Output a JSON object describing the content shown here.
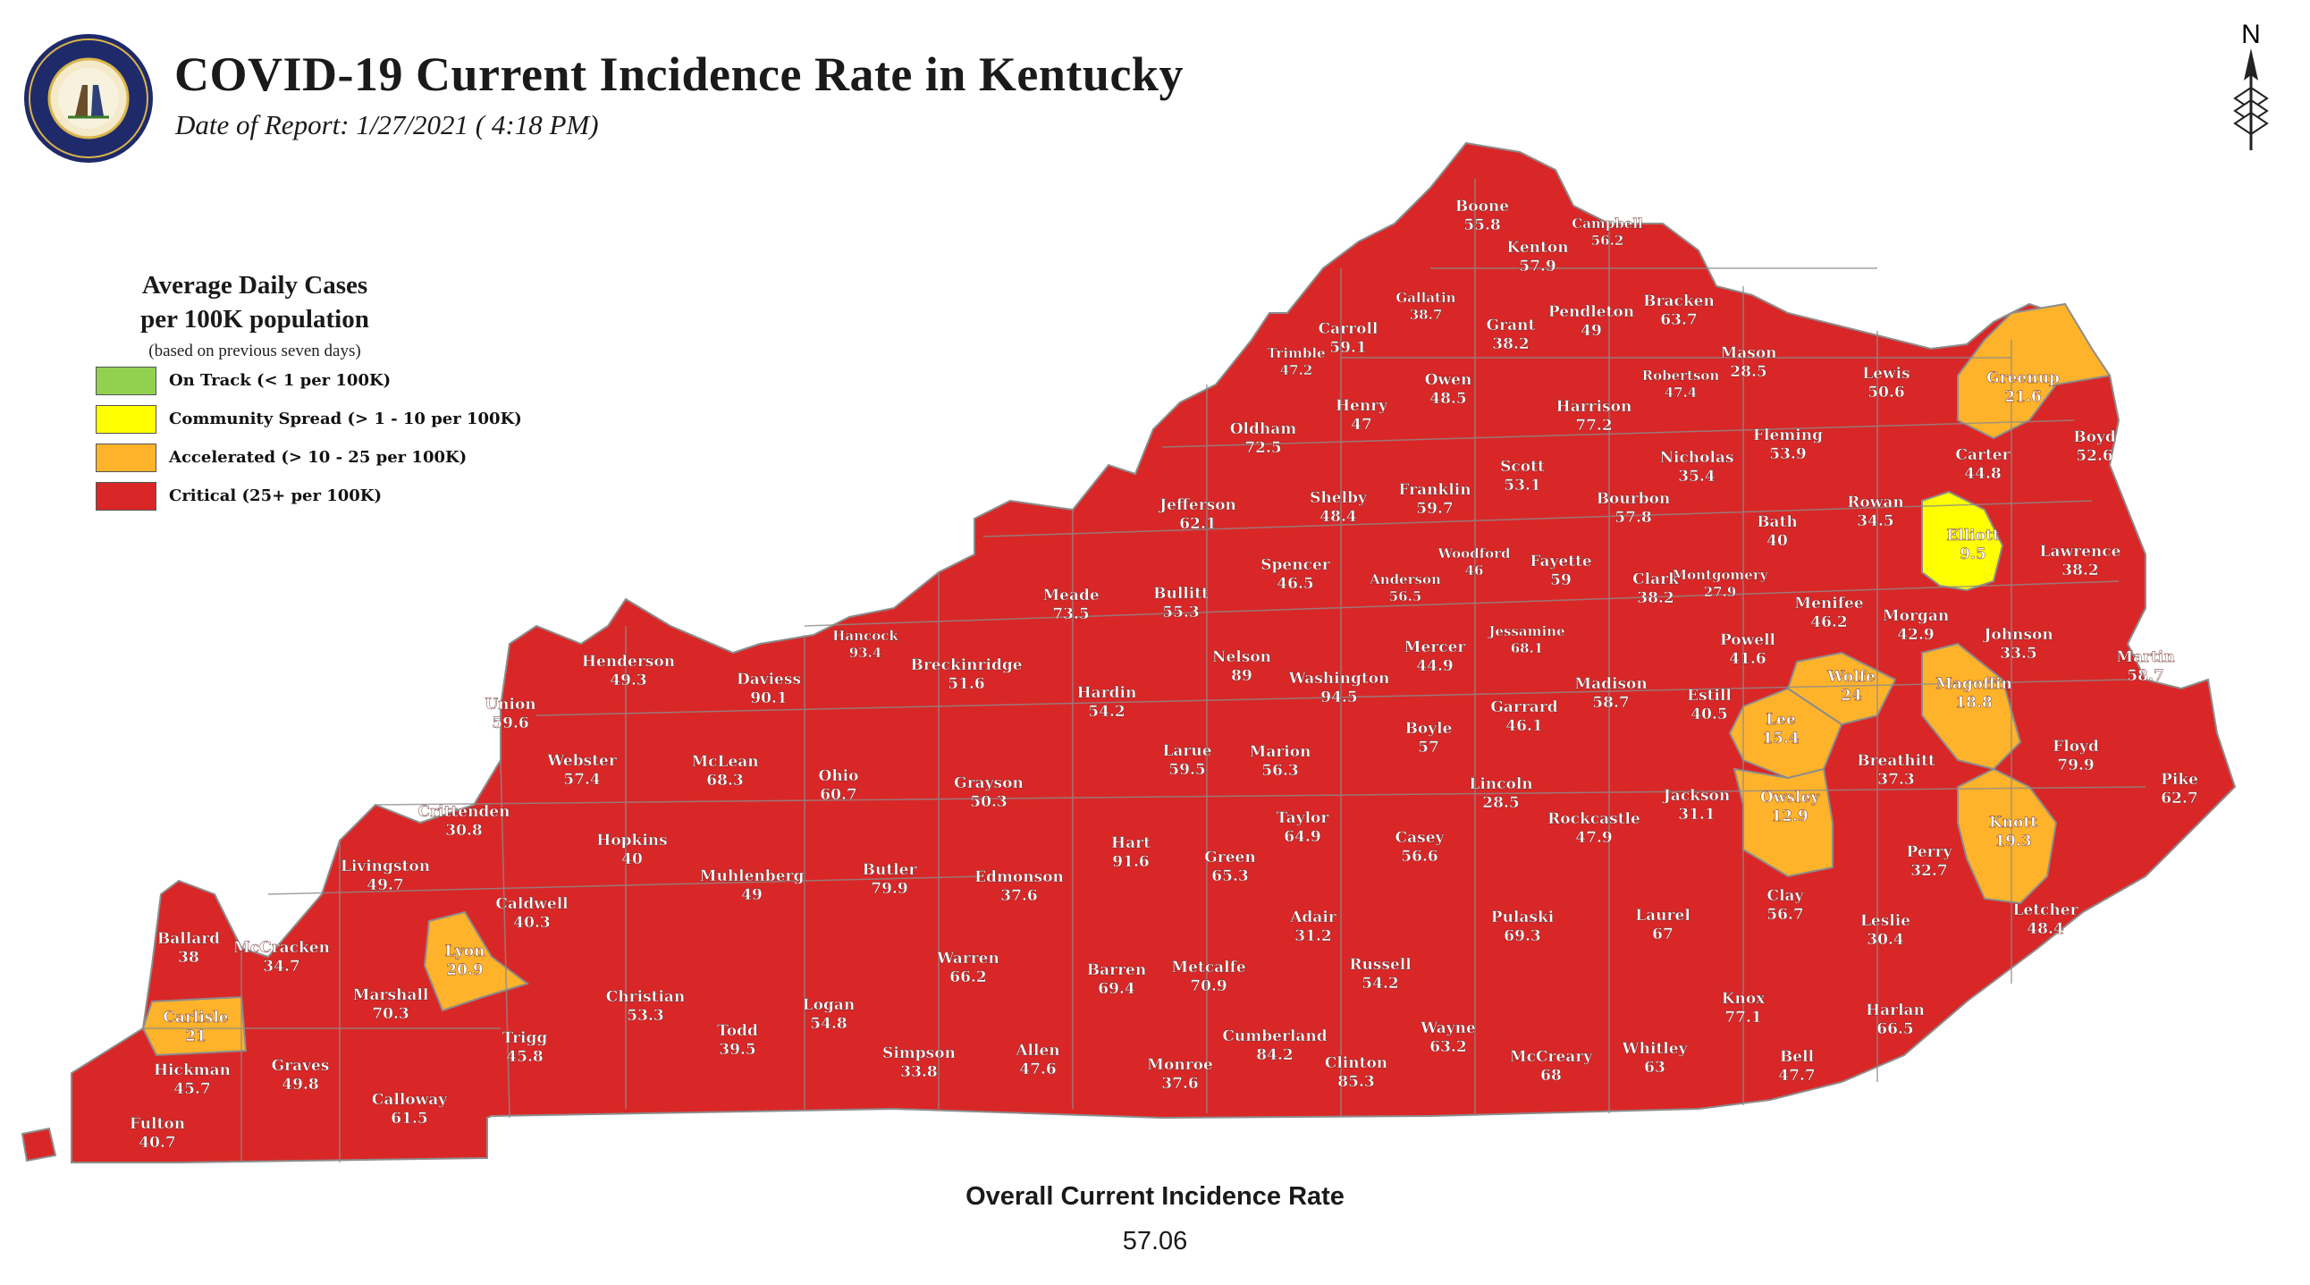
{
  "header": {
    "title": "COVID-19 Current Incidence Rate in Kentucky",
    "subtitle": "Date of Report: 1/27/2021 ( 4:18 PM)",
    "seal_text": "COMMONWEALTH OF KENTUCKY",
    "north_label": "N"
  },
  "legend": {
    "title_line1": "Average Daily Cases",
    "title_line2": "per 100K population",
    "note": "(based on previous seven days)",
    "items": [
      {
        "label": "On Track (< 1 per 100K)",
        "color": "#92d050"
      },
      {
        "label": "Community Spread (> 1 - 10 per 100K)",
        "color": "#ffff00"
      },
      {
        "label": "Accelerated (> 10 - 25 per 100K)",
        "color": "#ffb32b"
      },
      {
        "label": "Critical (25+ per 100K)",
        "color": "#d92727"
      }
    ]
  },
  "footer": {
    "label": "Overall Current Incidence Rate",
    "value": "57.06"
  },
  "counties": [
    {
      "name": "Boone",
      "value": "55.8"
    },
    {
      "name": "Kenton",
      "value": "57.9"
    },
    {
      "name": "Campbell",
      "value": "56.2"
    },
    {
      "name": "Gallatin",
      "value": "38.7"
    },
    {
      "name": "Carroll",
      "value": "59.1"
    },
    {
      "name": "Grant",
      "value": "38.2"
    },
    {
      "name": "Pendleton",
      "value": "49"
    },
    {
      "name": "Bracken",
      "value": "63.7"
    },
    {
      "name": "Trimble",
      "value": "47.2"
    },
    {
      "name": "Owen",
      "value": "48.5"
    },
    {
      "name": "Mason",
      "value": "28.5"
    },
    {
      "name": "Robertson",
      "value": "47.4"
    },
    {
      "name": "Lewis",
      "value": "50.6"
    },
    {
      "name": "Greenup",
      "value": "21.6"
    },
    {
      "name": "Henry",
      "value": "47"
    },
    {
      "name": "Harrison",
      "value": "77.2"
    },
    {
      "name": "Oldham",
      "value": "72.5"
    },
    {
      "name": "Fleming",
      "value": "53.9"
    },
    {
      "name": "Boyd",
      "value": "52.6"
    },
    {
      "name": "Scott",
      "value": "53.1"
    },
    {
      "name": "Nicholas",
      "value": "35.4"
    },
    {
      "name": "Carter",
      "value": "44.8"
    },
    {
      "name": "Franklin",
      "value": "59.7"
    },
    {
      "name": "Shelby",
      "value": "48.4"
    },
    {
      "name": "Jefferson",
      "value": "62.1"
    },
    {
      "name": "Bourbon",
      "value": "57.8"
    },
    {
      "name": "Rowan",
      "value": "34.5"
    },
    {
      "name": "Bath",
      "value": "40"
    },
    {
      "name": "Elliott",
      "value": "9.5"
    },
    {
      "name": "Woodford",
      "value": "46"
    },
    {
      "name": "Lawrence",
      "value": "38.2"
    },
    {
      "name": "Fayette",
      "value": "59"
    },
    {
      "name": "Spencer",
      "value": "46.5"
    },
    {
      "name": "Anderson",
      "value": "56.5"
    },
    {
      "name": "Clark",
      "value": "38.2"
    },
    {
      "name": "Montgomery",
      "value": "27.9"
    },
    {
      "name": "Meade",
      "value": "73.5"
    },
    {
      "name": "Bullitt",
      "value": "55.3"
    },
    {
      "name": "Menifee",
      "value": "46.2"
    },
    {
      "name": "Morgan",
      "value": "42.9"
    },
    {
      "name": "Hancock",
      "value": "93.4"
    },
    {
      "name": "Jessamine",
      "value": "68.1"
    },
    {
      "name": "Johnson",
      "value": "33.5"
    },
    {
      "name": "Mercer",
      "value": "44.9"
    },
    {
      "name": "Powell",
      "value": "41.6"
    },
    {
      "name": "Martin",
      "value": "58.7"
    },
    {
      "name": "Henderson",
      "value": "49.3"
    },
    {
      "name": "Nelson",
      "value": "89"
    },
    {
      "name": "Breckinridge",
      "value": "51.6"
    },
    {
      "name": "Daviess",
      "value": "90.1"
    },
    {
      "name": "Washington",
      "value": "94.5"
    },
    {
      "name": "Wolfe",
      "value": "24"
    },
    {
      "name": "Magoffin",
      "value": "18.8"
    },
    {
      "name": "Madison",
      "value": "58.7"
    },
    {
      "name": "Garrard",
      "value": "46.1"
    },
    {
      "name": "Hardin",
      "value": "54.2"
    },
    {
      "name": "Estill",
      "value": "40.5"
    },
    {
      "name": "Union",
      "value": "59.6"
    },
    {
      "name": "Lee",
      "value": "15.4"
    },
    {
      "name": "Boyle",
      "value": "57"
    },
    {
      "name": "Floyd",
      "value": "79.9"
    },
    {
      "name": "Marion",
      "value": "56.3"
    },
    {
      "name": "Webster",
      "value": "57.4"
    },
    {
      "name": "McLean",
      "value": "68.3"
    },
    {
      "name": "Breathitt",
      "value": "37.3"
    },
    {
      "name": "Larue",
      "value": "59.5"
    },
    {
      "name": "Ohio",
      "value": "60.7"
    },
    {
      "name": "Pike",
      "value": "62.7"
    },
    {
      "name": "Lincoln",
      "value": "28.5"
    },
    {
      "name": "Grayson",
      "value": "50.3"
    },
    {
      "name": "Jackson",
      "value": "31.1"
    },
    {
      "name": "Owsley",
      "value": "12.9"
    },
    {
      "name": "Crittenden",
      "value": "30.8"
    },
    {
      "name": "Taylor",
      "value": "64.9"
    },
    {
      "name": "Knott",
      "value": "19.3"
    },
    {
      "name": "Rockcastle",
      "value": "47.9"
    },
    {
      "name": "Casey",
      "value": "56.6"
    },
    {
      "name": "Hopkins",
      "value": "40"
    },
    {
      "name": "Hart",
      "value": "91.6"
    },
    {
      "name": "Perry",
      "value": "32.7"
    },
    {
      "name": "Livingston",
      "value": "49.7"
    },
    {
      "name": "Green",
      "value": "65.3"
    },
    {
      "name": "Butler",
      "value": "79.9"
    },
    {
      "name": "Muhlenberg",
      "value": "49"
    },
    {
      "name": "Edmonson",
      "value": "37.6"
    },
    {
      "name": "Clay",
      "value": "56.7"
    },
    {
      "name": "Caldwell",
      "value": "40.3"
    },
    {
      "name": "Pulaski",
      "value": "69.3"
    },
    {
      "name": "Laurel",
      "value": "67"
    },
    {
      "name": "Adair",
      "value": "31.2"
    },
    {
      "name": "Leslie",
      "value": "30.4"
    },
    {
      "name": "Letcher",
      "value": "48.4"
    },
    {
      "name": "Ballard",
      "value": "38"
    },
    {
      "name": "McCracken",
      "value": "34.7"
    },
    {
      "name": "Lyon",
      "value": "20.9"
    },
    {
      "name": "Warren",
      "value": "66.2"
    },
    {
      "name": "Metcalfe",
      "value": "70.9"
    },
    {
      "name": "Barren",
      "value": "69.4"
    },
    {
      "name": "Russell",
      "value": "54.2"
    },
    {
      "name": "Marshall",
      "value": "70.3"
    },
    {
      "name": "Christian",
      "value": "53.3"
    },
    {
      "name": "Logan",
      "value": "54.8"
    },
    {
      "name": "Knox",
      "value": "77.1"
    },
    {
      "name": "Harlan",
      "value": "66.5"
    },
    {
      "name": "Carlisle",
      "value": "21"
    },
    {
      "name": "Wayne",
      "value": "63.2"
    },
    {
      "name": "Trigg",
      "value": "45.8"
    },
    {
      "name": "Todd",
      "value": "39.5"
    },
    {
      "name": "Cumberland",
      "value": "84.2"
    },
    {
      "name": "Allen",
      "value": "47.6"
    },
    {
      "name": "Whitley",
      "value": "63"
    },
    {
      "name": "Simpson",
      "value": "33.8"
    },
    {
      "name": "McCreary",
      "value": "68"
    },
    {
      "name": "Bell",
      "value": "47.7"
    },
    {
      "name": "Hickman",
      "value": "45.7"
    },
    {
      "name": "Graves",
      "value": "49.8"
    },
    {
      "name": "Monroe",
      "value": "37.6"
    },
    {
      "name": "Clinton",
      "value": "85.3"
    },
    {
      "name": "Calloway",
      "value": "61.5"
    },
    {
      "name": "Fulton",
      "value": "40.7"
    }
  ]
}
